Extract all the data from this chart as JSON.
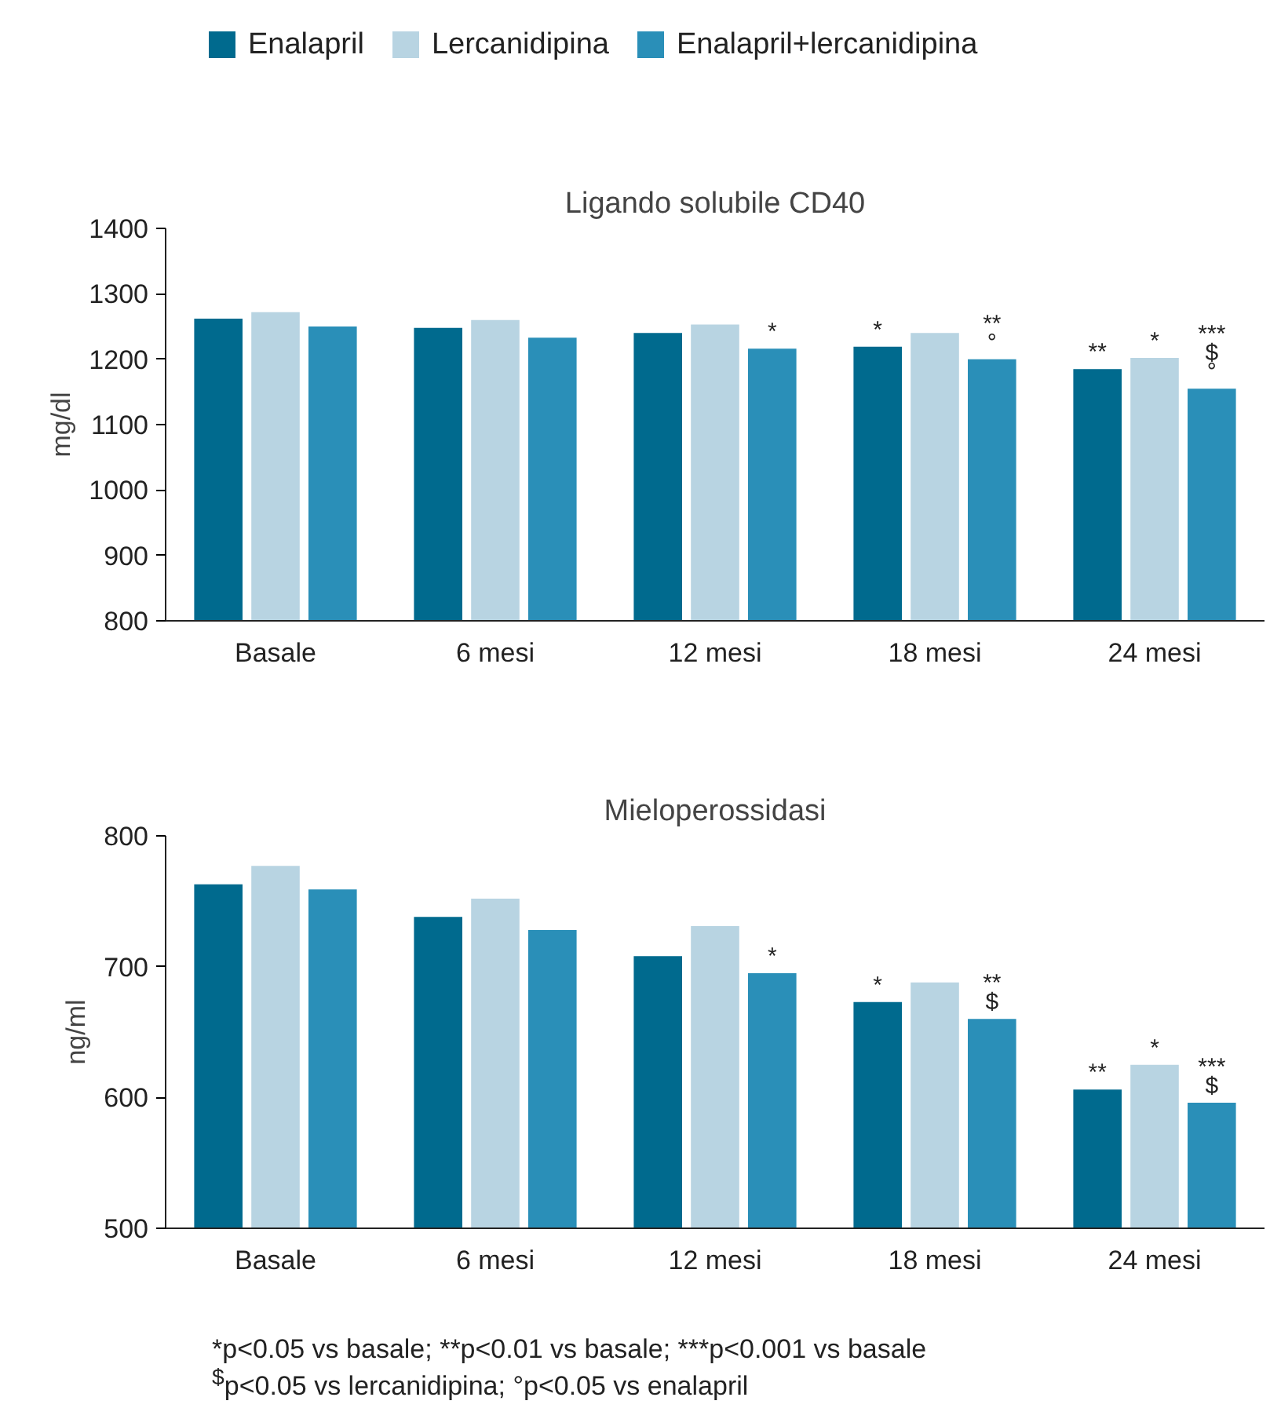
{
  "chart_data": [
    {
      "type": "bar",
      "title": "Ligando solubile CD40",
      "ylabel": "mg/dl",
      "categories": [
        "Basale",
        "6 mesi",
        "12 mesi",
        "18 mesi",
        "24 mesi"
      ],
      "series": [
        {
          "name": "Enalapril",
          "color": "#006a8e",
          "values": [
            1262,
            1248,
            1240,
            1219,
            1185
          ],
          "value_labels": [
            null,
            null,
            null,
            "*",
            "**"
          ]
        },
        {
          "name": "Lercanidipina",
          "color": "#b8d4e2",
          "values": [
            1272,
            1260,
            1253,
            1240,
            1202
          ],
          "value_labels": [
            null,
            null,
            null,
            null,
            "*"
          ]
        },
        {
          "name": "Enalapril+lercanidipina",
          "color": "#2a8fb8",
          "values": [
            1250,
            1233,
            1216,
            1200,
            1155
          ],
          "value_labels": [
            null,
            null,
            "*",
            "**\n°",
            "***\n$\n°"
          ]
        }
      ],
      "ylim": [
        800,
        1400
      ],
      "yticks": [
        800,
        900,
        1000,
        1100,
        1200,
        1300,
        1400
      ],
      "grid": false,
      "legend": "top"
    },
    {
      "type": "bar",
      "title": "Mieloperossidasi",
      "ylabel": "ng/ml",
      "categories": [
        "Basale",
        "6 mesi",
        "12 mesi",
        "18 mesi",
        "24 mesi"
      ],
      "series": [
        {
          "color": "#006a8e",
          "values": [
            763,
            738,
            708,
            673,
            606
          ],
          "value_labels": [
            null,
            null,
            null,
            "*",
            "**"
          ]
        },
        {
          "color": "#b8d4e2",
          "values": [
            777,
            752,
            731,
            688,
            625
          ],
          "value_labels": [
            null,
            null,
            null,
            null,
            "*"
          ]
        },
        {
          "color": "#2a8fb8",
          "values": [
            759,
            728,
            695,
            660,
            596
          ],
          "value_labels": [
            null,
            null,
            "*",
            "**\n$",
            "***\n$"
          ]
        }
      ],
      "ylim": [
        500,
        800
      ],
      "yticks": [
        500,
        600,
        700,
        800
      ],
      "grid": false,
      "annotations": [
        "*p<0.05 vs basale; **p<0.01 vs basale; ***p<0.001 vs basale",
        "$^{$}$p<0.05 vs lercanidipina; °p<0.05 vs enalapril"
      ]
    }
  ]
}
